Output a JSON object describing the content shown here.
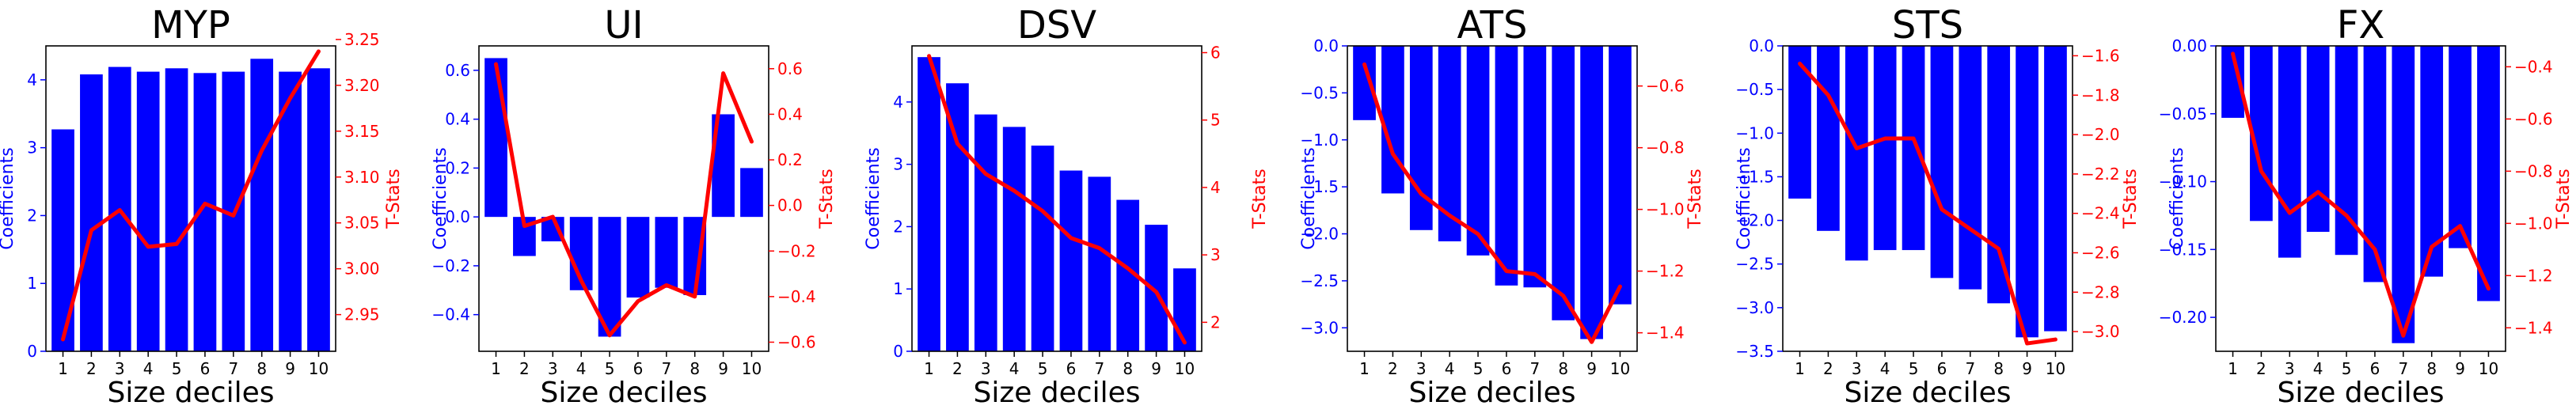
{
  "chart_data": [
    {
      "type": "bar",
      "title": "MYP",
      "xlabel": "Size deciles",
      "ylabel": "Coefficients",
      "y2label": "T-Stats",
      "categories": [
        "1",
        "2",
        "3",
        "4",
        "5",
        "6",
        "7",
        "8",
        "9",
        "10"
      ],
      "series": [
        {
          "name": "Coefficients",
          "type": "bar",
          "axis": "left",
          "color": "#0000ff",
          "values": [
            3.27,
            4.08,
            4.19,
            4.12,
            4.17,
            4.1,
            4.12,
            4.31,
            4.12,
            4.17
          ]
        },
        {
          "name": "T-Stats",
          "type": "line",
          "axis": "right",
          "color": "#ff0000",
          "values": [
            2.923,
            3.042,
            3.064,
            3.024,
            3.027,
            3.071,
            3.058,
            3.129,
            3.186,
            3.237
          ]
        }
      ],
      "ylim": [
        0,
        4.5
      ],
      "yticks": [
        0,
        1,
        2,
        3,
        4
      ],
      "ytick_labels": [
        "0",
        "1",
        "2",
        "3",
        "4"
      ],
      "y2lim": [
        2.91,
        3.243
      ],
      "y2ticks": [
        2.95,
        3.0,
        3.05,
        3.1,
        3.15,
        3.2,
        3.25
      ],
      "y2tick_labels": [
        "2.95",
        "3.00",
        "3.05",
        "3.10",
        "3.15",
        "3.20",
        "3.25"
      ]
    },
    {
      "type": "bar",
      "title": "UI",
      "xlabel": "Size deciles",
      "ylabel": "Coefficients",
      "y2label": "T-Stats",
      "categories": [
        "1",
        "2",
        "3",
        "4",
        "5",
        "6",
        "7",
        "8",
        "9",
        "10"
      ],
      "series": [
        {
          "name": "Coefficients",
          "type": "bar",
          "axis": "left",
          "color": "#0000ff",
          "values": [
            0.65,
            -0.16,
            -0.1,
            -0.3,
            -0.49,
            -0.33,
            -0.29,
            -0.32,
            0.42,
            0.2
          ]
        },
        {
          "name": "T-Stats",
          "type": "line",
          "axis": "right",
          "color": "#ff0000",
          "values": [
            0.62,
            -0.09,
            -0.05,
            -0.33,
            -0.57,
            -0.42,
            -0.35,
            -0.4,
            0.58,
            0.28
          ]
        }
      ],
      "ylim": [
        -0.55,
        0.7
      ],
      "yticks": [
        -0.4,
        -0.2,
        0.0,
        0.2,
        0.4,
        0.6
      ],
      "ytick_labels": [
        "−0.4",
        "−0.2",
        "0.0",
        "0.2",
        "0.4",
        "0.6"
      ],
      "y2lim": [
        -0.64,
        0.7
      ],
      "y2ticks": [
        -0.6,
        -0.4,
        -0.2,
        0.0,
        0.2,
        0.4,
        0.6
      ],
      "y2tick_labels": [
        "−0.6",
        "−0.4",
        "−0.2",
        "0.0",
        "0.2",
        "0.4",
        "0.6"
      ]
    },
    {
      "type": "bar",
      "title": "DSV",
      "xlabel": "Size deciles",
      "ylabel": "Coefficients",
      "y2label": "T-Stats",
      "categories": [
        "1",
        "2",
        "3",
        "4",
        "5",
        "6",
        "7",
        "8",
        "9",
        "10"
      ],
      "series": [
        {
          "name": "Coefficients",
          "type": "bar",
          "axis": "left",
          "color": "#0000ff",
          "values": [
            4.72,
            4.3,
            3.8,
            3.6,
            3.3,
            2.9,
            2.8,
            2.43,
            2.03,
            1.33
          ]
        },
        {
          "name": "T-Stats",
          "type": "line",
          "axis": "right",
          "color": "#ff0000",
          "values": [
            5.95,
            4.65,
            4.2,
            3.95,
            3.65,
            3.25,
            3.1,
            2.8,
            2.45,
            1.7
          ]
        }
      ],
      "ylim": [
        0,
        4.9
      ],
      "yticks": [
        0,
        1,
        2,
        3,
        4
      ],
      "ytick_labels": [
        "0",
        "1",
        "2",
        "3",
        "4"
      ],
      "y2lim": [
        1.57,
        6.1
      ],
      "y2ticks": [
        2,
        3,
        4,
        5,
        6
      ],
      "y2tick_labels": [
        "2",
        "3",
        "4",
        "5",
        "6"
      ]
    },
    {
      "type": "bar",
      "title": "ATS",
      "xlabel": "Size deciles",
      "ylabel": "Coefficients",
      "y2label": "T-Stats",
      "categories": [
        "1",
        "2",
        "3",
        "4",
        "5",
        "6",
        "7",
        "8",
        "9",
        "10"
      ],
      "series": [
        {
          "name": "Coefficients",
          "type": "bar",
          "axis": "left",
          "color": "#0000ff",
          "values": [
            -0.79,
            -1.57,
            -1.96,
            -2.08,
            -2.23,
            -2.55,
            -2.57,
            -2.92,
            -3.12,
            -2.75
          ]
        },
        {
          "name": "T-Stats",
          "type": "line",
          "axis": "right",
          "color": "#ff0000",
          "values": [
            -0.53,
            -0.82,
            -0.95,
            -1.02,
            -1.08,
            -1.2,
            -1.21,
            -1.28,
            -1.43,
            -1.25
          ]
        }
      ],
      "ylim": [
        -3.25,
        0
      ],
      "yticks": [
        -3.0,
        -2.5,
        -2.0,
        -1.5,
        -1.0,
        -0.5,
        0.0
      ],
      "ytick_labels": [
        "−3.0",
        "−2.5",
        "−2.0",
        "−1.5",
        "−1.0",
        "−0.5",
        "0.0"
      ],
      "y2lim": [
        -1.46,
        -0.47
      ],
      "y2ticks": [
        -1.4,
        -1.2,
        -1.0,
        -0.8,
        -0.6
      ],
      "y2tick_labels": [
        "−1.4",
        "−1.2",
        "−1.0",
        "−0.8",
        "−0.6"
      ]
    },
    {
      "type": "bar",
      "title": "STS",
      "xlabel": "Size deciles",
      "ylabel": "Coefficients",
      "y2label": "T-Stats",
      "categories": [
        "1",
        "2",
        "3",
        "4",
        "5",
        "6",
        "7",
        "8",
        "9",
        "10"
      ],
      "series": [
        {
          "name": "Coefficients",
          "type": "bar",
          "axis": "left",
          "color": "#0000ff",
          "values": [
            -1.75,
            -2.12,
            -2.46,
            -2.34,
            -2.34,
            -2.66,
            -2.79,
            -2.95,
            -3.34,
            -3.27
          ]
        },
        {
          "name": "T-Stats",
          "type": "line",
          "axis": "right",
          "color": "#ff0000",
          "values": [
            -1.64,
            -1.8,
            -2.07,
            -2.02,
            -2.02,
            -2.38,
            -2.48,
            -2.58,
            -3.06,
            -3.04
          ]
        }
      ],
      "ylim": [
        -3.5,
        0
      ],
      "yticks": [
        -3.5,
        -3.0,
        -2.5,
        -2.0,
        -1.5,
        -1.0,
        -0.5,
        0.0
      ],
      "ytick_labels": [
        "−3.5",
        "−3.0",
        "−2.5",
        "−2.0",
        "−1.5",
        "−1.0",
        "−0.5",
        "0.0"
      ],
      "y2lim": [
        -3.1,
        -1.55
      ],
      "y2ticks": [
        -3.0,
        -2.8,
        -2.6,
        -2.4,
        -2.2,
        -2.0,
        -1.8,
        -1.6
      ],
      "y2tick_labels": [
        "−3.0",
        "−2.8",
        "−2.6",
        "−2.4",
        "−2.2",
        "−2.0",
        "−1.8",
        "−1.6"
      ]
    },
    {
      "type": "bar",
      "title": "FX",
      "xlabel": "Size deciles",
      "ylabel": "Coefficients",
      "y2label": "T-Stats",
      "categories": [
        "1",
        "2",
        "3",
        "4",
        "5",
        "6",
        "7",
        "8",
        "9",
        "10"
      ],
      "series": [
        {
          "name": "Coefficients",
          "type": "bar",
          "axis": "left",
          "color": "#0000ff",
          "values": [
            -0.053,
            -0.129,
            -0.156,
            -0.137,
            -0.154,
            -0.174,
            -0.219,
            -0.17,
            -0.149,
            -0.188
          ]
        },
        {
          "name": "T-Stats",
          "type": "line",
          "axis": "right",
          "color": "#ff0000",
          "values": [
            -0.35,
            -0.8,
            -0.96,
            -0.88,
            -0.97,
            -1.1,
            -1.43,
            -1.09,
            -1.01,
            -1.25
          ]
        }
      ],
      "ylim": [
        -0.225,
        0
      ],
      "yticks": [
        -0.2,
        -0.15,
        -0.1,
        -0.05,
        0.0
      ],
      "ytick_labels": [
        "−0.20",
        "−0.15",
        "−0.10",
        "−0.05",
        "0.00"
      ],
      "y2lim": [
        -1.49,
        -0.32
      ],
      "y2ticks": [
        -1.4,
        -1.2,
        -1.0,
        -0.8,
        -0.6,
        -0.4
      ],
      "y2tick_labels": [
        "−1.4",
        "−1.2",
        "−1.0",
        "−0.8",
        "−0.6",
        "−0.4"
      ]
    }
  ]
}
